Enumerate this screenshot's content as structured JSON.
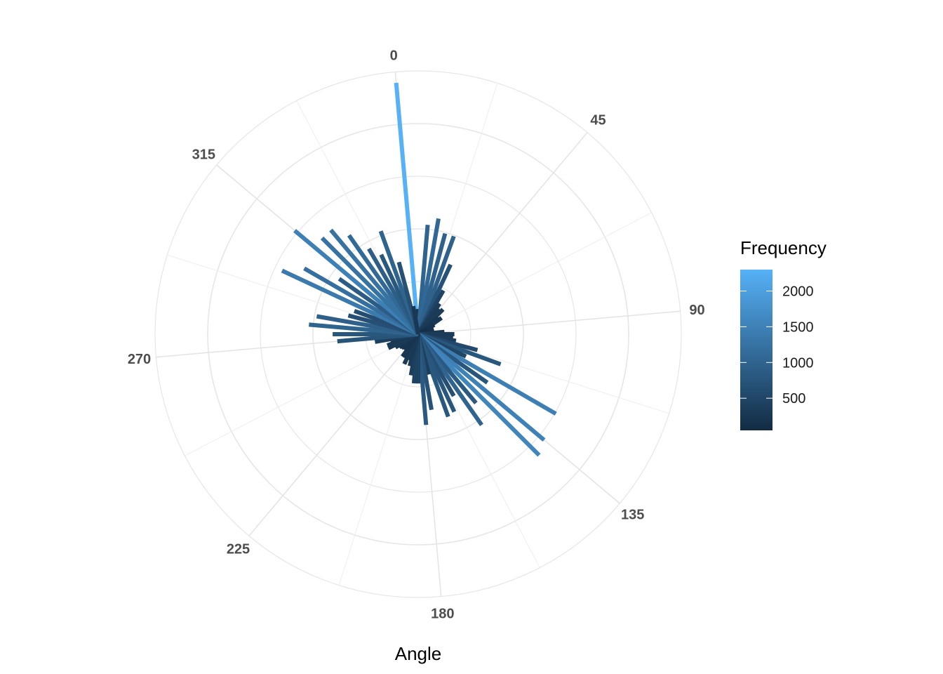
{
  "chart_data": {
    "type": "polar-bar",
    "xlabel": "Angle",
    "angle_ticks": [
      "0",
      "45",
      "90",
      "135",
      "180",
      "225",
      "270",
      "315"
    ],
    "angle_tick_values": [
      0,
      45,
      90,
      135,
      180,
      225,
      270,
      315
    ],
    "rotation_offset_deg": 5,
    "radial_gridlines": 5,
    "angular_gridlines_deg": [
      0,
      22.5,
      45,
      67.5,
      90,
      112.5,
      135,
      157.5,
      180,
      202.5,
      225,
      247.5,
      270,
      292.5,
      315,
      337.5
    ],
    "radius_max": 2400,
    "angle_bins_deg": [
      0,
      5,
      10,
      15,
      20,
      25,
      30,
      35,
      40,
      45,
      50,
      55,
      60,
      65,
      70,
      75,
      80,
      85,
      90,
      95,
      100,
      105,
      110,
      115,
      120,
      125,
      130,
      135,
      140,
      145,
      150,
      155,
      160,
      165,
      170,
      175,
      180,
      185,
      190,
      195,
      200,
      205,
      210,
      215,
      220,
      225,
      230,
      235,
      240,
      245,
      250,
      255,
      260,
      265,
      270,
      275,
      280,
      285,
      290,
      295,
      300,
      305,
      310,
      315,
      320,
      325,
      330,
      335,
      340,
      345,
      350,
      355
    ],
    "frequency": [
      2300,
      230,
      1000,
      1070,
      950,
      950,
      700,
      460,
      340,
      300,
      320,
      240,
      260,
      170,
      90,
      90,
      150,
      130,
      240,
      330,
      320,
      350,
      560,
      800,
      480,
      1450,
      770,
      1500,
      1560,
      820,
      1010,
      650,
      780,
      800,
      380,
      700,
      830,
      450,
      450,
      380,
      300,
      250,
      300,
      250,
      250,
      190,
      190,
      200,
      210,
      240,
      300,
      300,
      260,
      400,
      740,
      780,
      1000,
      940,
      660,
      620,
      1370,
      1200,
      880,
      1470,
      1240,
      1240,
      1100,
      900,
      800,
      1000,
      680,
      260
    ],
    "legend": {
      "title": "Frequency",
      "labels": [
        "2000",
        "1500",
        "1000",
        "500"
      ],
      "values": [
        2000,
        1500,
        1000,
        500
      ],
      "range": [
        50,
        2300
      ],
      "color_low": "#132B43",
      "color_high": "#56B1F7"
    },
    "grid": true,
    "legend_position": "right"
  }
}
